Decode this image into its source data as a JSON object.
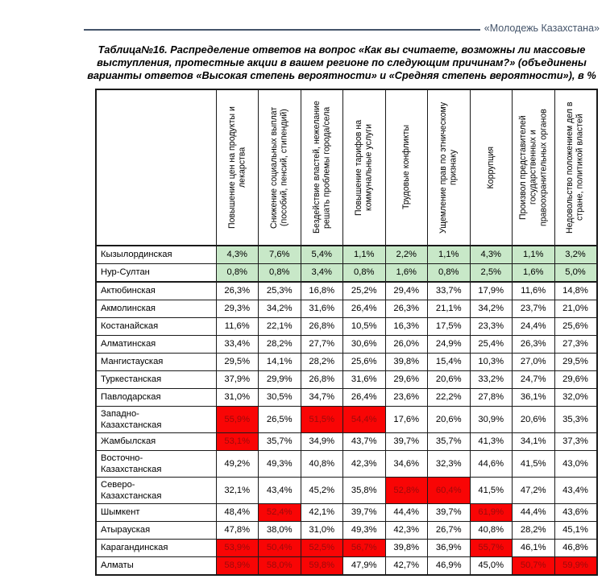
{
  "page": {
    "header_right": "«Молодежь Казахстана»",
    "accent_color": "#44546a"
  },
  "table": {
    "title": "Таблица№16. Распределение ответов на вопрос «Как вы считаете, возможны ли массовые выступления, протестные акции в вашем регионе по следующим причинам?» (объединены варианты ответов «Высокая степень вероятности» и «Средняя степень вероятности»), в %",
    "columns": [
      "Повышение цен на продукты и лекарства",
      "Снижение социальных выплат (пособий, пенсий, стипендий)",
      "Бездействие властей, нежелание решать проблемы города/села",
      "Повышение тарифов на коммунальные услуги",
      "Трудовые конфликты",
      "Ущемление прав по этническому признаку",
      "Коррупция",
      "Произвол представителей государственных и правоохранительных органов",
      "Недовольство положением дел в стране, политикой властей"
    ],
    "highlight_colors": {
      "green_bg": "#c8e8c8",
      "red_bg": "#f90505",
      "red_text": "#9c0b0b"
    },
    "rows": [
      {
        "region": "Кызылординская",
        "values": [
          "4,3%",
          "7,6%",
          "5,4%",
          "1,1%",
          "2,2%",
          "1,1%",
          "4,3%",
          "1,1%",
          "3,2%"
        ],
        "highlight": "green",
        "red": []
      },
      {
        "region": "Нур-Султан",
        "values": [
          "0,8%",
          "0,8%",
          "3,4%",
          "0,8%",
          "1,6%",
          "0,8%",
          "2,5%",
          "1,6%",
          "5,0%"
        ],
        "highlight": "green",
        "red": [],
        "group_end": true
      },
      {
        "region": "Актюбинская",
        "values": [
          "26,3%",
          "25,3%",
          "16,8%",
          "25,2%",
          "29,4%",
          "33,7%",
          "17,9%",
          "11,6%",
          "14,8%"
        ],
        "highlight": null,
        "red": []
      },
      {
        "region": "Акмолинская",
        "values": [
          "29,3%",
          "34,2%",
          "31,6%",
          "26,4%",
          "26,3%",
          "21,1%",
          "34,2%",
          "23,7%",
          "21,0%"
        ],
        "highlight": null,
        "red": []
      },
      {
        "region": "Костанайская",
        "values": [
          "11,6%",
          "22,1%",
          "26,8%",
          "10,5%",
          "16,3%",
          "17,5%",
          "23,3%",
          "24,4%",
          "25,6%"
        ],
        "highlight": null,
        "red": []
      },
      {
        "region": "Алматинская",
        "values": [
          "33,4%",
          "28,2%",
          "27,7%",
          "30,6%",
          "26,0%",
          "24,9%",
          "25,4%",
          "26,3%",
          "27,3%"
        ],
        "highlight": null,
        "red": []
      },
      {
        "region": "Мангистауская",
        "values": [
          "29,5%",
          "14,1%",
          "28,2%",
          "25,6%",
          "39,8%",
          "15,4%",
          "10,3%",
          "27,0%",
          "29,5%"
        ],
        "highlight": null,
        "red": []
      },
      {
        "region": "Туркестанская",
        "values": [
          "37,9%",
          "29,9%",
          "26,8%",
          "31,6%",
          "29,6%",
          "20,6%",
          "33,2%",
          "24,7%",
          "29,6%"
        ],
        "highlight": null,
        "red": []
      },
      {
        "region": "Павлодарская",
        "values": [
          "31,0%",
          "30,5%",
          "34,7%",
          "26,4%",
          "23,6%",
          "22,2%",
          "27,8%",
          "36,1%",
          "32,0%"
        ],
        "highlight": null,
        "red": []
      },
      {
        "region": "Западно-\nКазахстанская",
        "values": [
          "55,9%",
          "26,5%",
          "51,5%",
          "54,4%",
          "17,6%",
          "20,6%",
          "30,9%",
          "20,6%",
          "35,3%"
        ],
        "highlight": null,
        "red": [
          0,
          2,
          3
        ]
      },
      {
        "region": "Жамбылская",
        "values": [
          "53,1%",
          "35,7%",
          "34,9%",
          "43,7%",
          "39,7%",
          "35,7%",
          "41,3%",
          "34,1%",
          "37,3%"
        ],
        "highlight": null,
        "red": [
          0
        ]
      },
      {
        "region": "Восточно-\nКазахстанская",
        "values": [
          "49,2%",
          "49,3%",
          "40,8%",
          "42,3%",
          "34,6%",
          "32,3%",
          "44,6%",
          "41,5%",
          "43,0%"
        ],
        "highlight": null,
        "red": []
      },
      {
        "region": "Северо-\nКазахстанская",
        "values": [
          "32,1%",
          "43,4%",
          "45,2%",
          "35,8%",
          "52,8%",
          "60,4%",
          "41,5%",
          "47,2%",
          "43,4%"
        ],
        "highlight": null,
        "red": [
          4,
          5
        ]
      },
      {
        "region": "Шымкент",
        "values": [
          "48,4%",
          "52,4%",
          "42,1%",
          "39,7%",
          "44,4%",
          "39,7%",
          "61,9%",
          "44,4%",
          "43,6%"
        ],
        "highlight": null,
        "red": [
          1,
          6
        ]
      },
      {
        "region": "Атырауская",
        "values": [
          "47,8%",
          "38,0%",
          "31,0%",
          "49,3%",
          "42,3%",
          "26,7%",
          "40,8%",
          "28,2%",
          "45,1%"
        ],
        "highlight": null,
        "red": []
      },
      {
        "region": "Карагандинская",
        "values": [
          "53,9%",
          "50,4%",
          "52,5%",
          "56,7%",
          "39,8%",
          "36,9%",
          "55,7%",
          "46,1%",
          "46,8%"
        ],
        "highlight": null,
        "red": [
          0,
          1,
          2,
          3,
          6
        ]
      },
      {
        "region": "Алматы",
        "values": [
          "58,9%",
          "58,0%",
          "59,8%",
          "47,9%",
          "42,7%",
          "46,9%",
          "45,0%",
          "50,7%",
          "59,9%"
        ],
        "highlight": null,
        "red": [
          0,
          1,
          2,
          7,
          8
        ]
      }
    ]
  }
}
